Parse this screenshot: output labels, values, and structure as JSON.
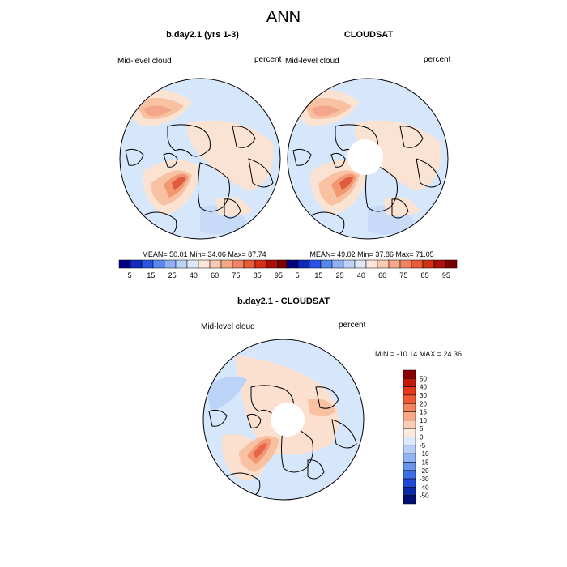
{
  "main_title": "ANN",
  "panels": [
    {
      "id": "model",
      "title": "b.day2.1 (yrs 1-3)",
      "left_label": "Mid-level cloud",
      "right_label": "percent",
      "stats": "MEAN=  50.01  Min=  34.06  Max=  87.74",
      "has_pole_gap": false
    },
    {
      "id": "obs",
      "title": "CLOUDSAT",
      "left_label": "Mid-level cloud",
      "right_label": "percent",
      "stats": "MEAN=  49.02  Min=  37.86  Max=  71.05",
      "has_pole_gap": true
    }
  ],
  "colorbar_abs": {
    "labels": [
      "5",
      "15",
      "25",
      "40",
      "60",
      "75",
      "85",
      "95"
    ],
    "colors": [
      "#000080",
      "#0d2bb8",
      "#2a52e8",
      "#5a86f0",
      "#8fb0f5",
      "#bcd3f8",
      "#dde9fb",
      "#fbe6d9",
      "#fbcab0",
      "#f6a888",
      "#f08364",
      "#e85a3a",
      "#d33018",
      "#a81008",
      "#7a0000"
    ]
  },
  "diff_panel": {
    "title": "b.day2.1 - CLOUDSAT",
    "left_label": "Mid-level cloud",
    "right_label": "percent",
    "minmax": "MIN = -10.14 MAX =  24.36"
  },
  "colorbar_diff": {
    "labels": [
      "50",
      "40",
      "30",
      "20",
      "15",
      "10",
      "5",
      "0",
      "-5",
      "-10",
      "-15",
      "-20",
      "-30",
      "-40",
      "-50"
    ],
    "colors": [
      "#8b0000",
      "#c41a0a",
      "#e8361a",
      "#f25a32",
      "#f5835c",
      "#f8a888",
      "#fbcdb6",
      "#fde9dc",
      "#dce9fb",
      "#b8d0f8",
      "#8fb3f4",
      "#6a95ef",
      "#3c6ee6",
      "#1f4ad8",
      "#0c2aa8",
      "#001070"
    ]
  },
  "colors": {
    "land_outline": "#000000",
    "ocean_default": "#d6e6fb",
    "pole_gap": "#ffffff"
  }
}
